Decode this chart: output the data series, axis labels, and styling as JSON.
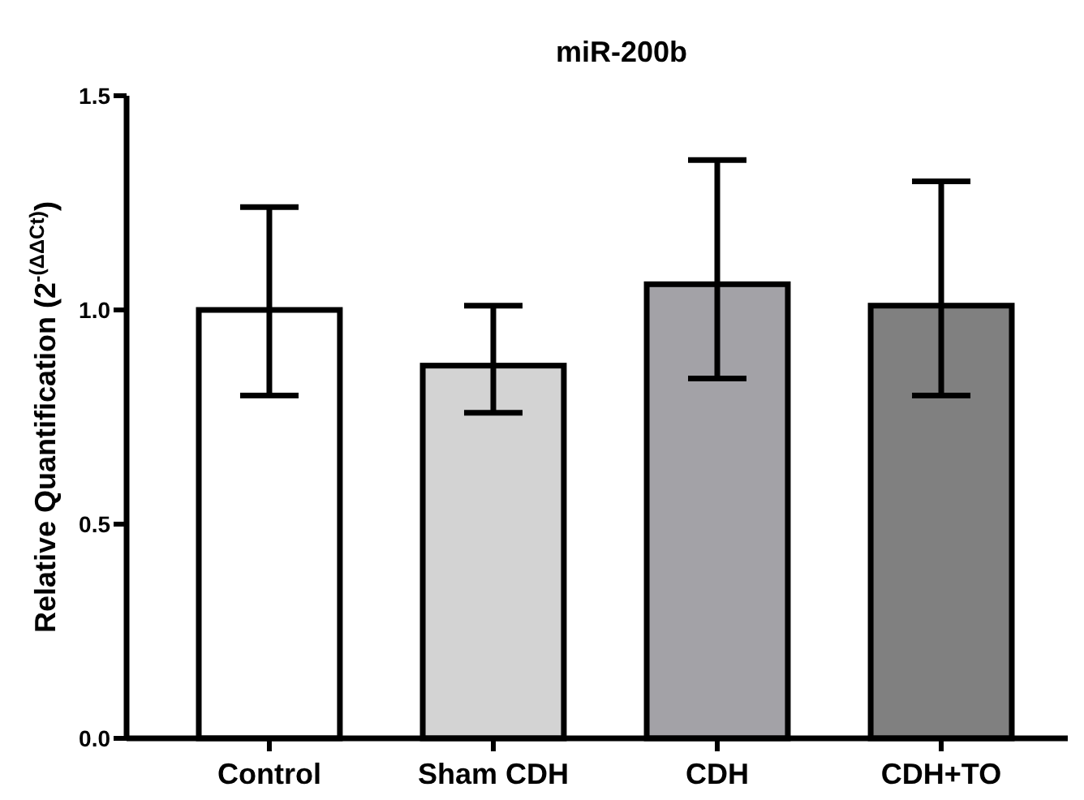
{
  "chart_data": {
    "type": "bar",
    "title": "miR-200b",
    "ylabel": "Relative Quantification (2$^{-(ΔΔCt)}$)",
    "categories": [
      "Control",
      "Sham CDH",
      "CDH",
      "CDH+TO"
    ],
    "values": [
      1.0,
      0.87,
      1.06,
      1.01
    ],
    "errors": [
      [
        0.8,
        1.24
      ],
      [
        0.76,
        1.01
      ],
      [
        0.84,
        1.35
      ],
      [
        0.8,
        1.3
      ]
    ],
    "colors": [
      "#ffffff",
      "#d3d3d3",
      "#a3a2a7",
      "#808080"
    ],
    "ylim": [
      0,
      1.5
    ],
    "yticks": [
      {
        "value": 0,
        "label": "0.0"
      },
      {
        "value": 0.5,
        "label": "0.5"
      },
      {
        "value": 1,
        "label": "1.0"
      },
      {
        "value": 1.5,
        "label": "1.5"
      }
    ],
    "grid": false
  }
}
